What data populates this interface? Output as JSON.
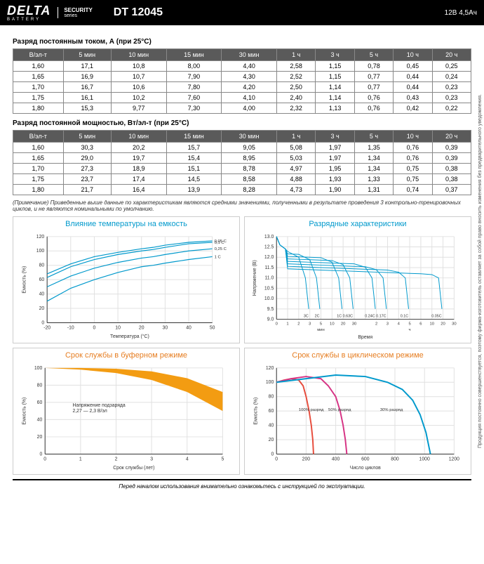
{
  "header": {
    "brand": "DELTA",
    "brand_sub": "BATTERY",
    "security_top": "SECURITY",
    "security_bot": "series",
    "model": "DT 12045",
    "spec": "12В  4,5Ач"
  },
  "vertical_note": "Продукция постоянно совершенствуется, поэтому фирма-изготовитель оставляет за собой право вносить изменения без предварительного уведомления.",
  "table1": {
    "title": "Разряд постоянным током, А (при 25°С)",
    "headers": [
      "В/эл-т",
      "5 мин",
      "10 мин",
      "15 мин",
      "30 мин",
      "1 ч",
      "3 ч",
      "5 ч",
      "10 ч",
      "20 ч"
    ],
    "rows": [
      [
        "1,60",
        "17,1",
        "10,8",
        "8,00",
        "4,40",
        "2,58",
        "1,15",
        "0,78",
        "0,45",
        "0,25"
      ],
      [
        "1,65",
        "16,9",
        "10,7",
        "7,90",
        "4,30",
        "2,52",
        "1,15",
        "0,77",
        "0,44",
        "0,24"
      ],
      [
        "1,70",
        "16,7",
        "10,6",
        "7,80",
        "4,20",
        "2,50",
        "1,14",
        "0,77",
        "0,44",
        "0,23"
      ],
      [
        "1,75",
        "16,1",
        "10,2",
        "7,60",
        "4,10",
        "2,40",
        "1,14",
        "0,76",
        "0,43",
        "0,23"
      ],
      [
        "1,80",
        "15,3",
        "9,77",
        "7,30",
        "4,00",
        "2,32",
        "1,13",
        "0,76",
        "0,42",
        "0,22"
      ]
    ]
  },
  "table2": {
    "title": "Разряд постоянной мощностью, Вт/эл-т (при 25°С)",
    "headers": [
      "В/эл-т",
      "5 мин",
      "10 мин",
      "15 мин",
      "30 мин",
      "1 ч",
      "3 ч",
      "5 ч",
      "10 ч",
      "20 ч"
    ],
    "rows": [
      [
        "1,60",
        "30,3",
        "20,2",
        "15,7",
        "9,05",
        "5,08",
        "1,97",
        "1,35",
        "0,76",
        "0,39"
      ],
      [
        "1,65",
        "29,0",
        "19,7",
        "15,4",
        "8,95",
        "5,03",
        "1,97",
        "1,34",
        "0,76",
        "0,39"
      ],
      [
        "1,70",
        "27,3",
        "18,9",
        "15,1",
        "8,78",
        "4,97",
        "1,95",
        "1,34",
        "0,75",
        "0,38"
      ],
      [
        "1,75",
        "23,7",
        "17,4",
        "14,5",
        "8,58",
        "4,88",
        "1,93",
        "1,33",
        "0,75",
        "0,38"
      ],
      [
        "1,80",
        "21,7",
        "16,4",
        "13,9",
        "8,28",
        "4,73",
        "1,90",
        "1,31",
        "0,74",
        "0,37"
      ]
    ]
  },
  "footnote": "(Примечание) Приведенные выше данные по характеристикам являются средними значениями, полученными в результате проведения 3 контрольно-тренировочных циклов, и не являются номинальными по умолчанию.",
  "chart1": {
    "title": "Влияние температуры на емкость",
    "color": "#0099cc",
    "xlabel": "Температура (°С)",
    "ylabel": "Емкость (%)",
    "xlim": [
      -20,
      50
    ],
    "xtick_step": 10,
    "ylim": [
      0,
      120
    ],
    "ytick_step": 20,
    "grid_color": "#e0e0e0",
    "line_color": "#0099cc",
    "series": [
      {
        "label": "0,05 С",
        "points": [
          [
            -20,
            68
          ],
          [
            -10,
            82
          ],
          [
            0,
            92
          ],
          [
            10,
            98
          ],
          [
            20,
            103
          ],
          [
            25,
            105
          ],
          [
            30,
            108
          ],
          [
            40,
            112
          ],
          [
            50,
            114
          ]
        ]
      },
      {
        "label": "0,1 С",
        "points": [
          [
            -20,
            63
          ],
          [
            -10,
            78
          ],
          [
            0,
            88
          ],
          [
            10,
            95
          ],
          [
            20,
            100
          ],
          [
            25,
            102
          ],
          [
            30,
            105
          ],
          [
            40,
            110
          ],
          [
            50,
            112
          ]
        ]
      },
      {
        "label": "0,25 С",
        "points": [
          [
            -20,
            50
          ],
          [
            -10,
            65
          ],
          [
            0,
            76
          ],
          [
            10,
            84
          ],
          [
            20,
            90
          ],
          [
            25,
            92
          ],
          [
            30,
            95
          ],
          [
            40,
            100
          ],
          [
            50,
            103
          ]
        ]
      },
      {
        "label": "1 С",
        "points": [
          [
            -20,
            30
          ],
          [
            -10,
            48
          ],
          [
            0,
            60
          ],
          [
            10,
            70
          ],
          [
            20,
            78
          ],
          [
            25,
            80
          ],
          [
            30,
            83
          ],
          [
            40,
            88
          ],
          [
            50,
            92
          ]
        ]
      }
    ]
  },
  "chart2": {
    "title": "Разрядные характеристики",
    "color": "#0099cc",
    "xlabel": "Время",
    "x_sublabels": [
      "мин",
      "ч"
    ],
    "ylabel": "Напряжение (В)",
    "xticks_min": [
      0,
      1,
      2,
      3,
      5,
      10,
      20,
      30
    ],
    "xticks_hr": [
      2,
      3,
      4,
      5,
      6,
      10,
      20,
      30
    ],
    "yticks": [
      9.0,
      9.5,
      10.0,
      10.5,
      11.0,
      11.5,
      12.0,
      12.5,
      13.0
    ],
    "grid_color": "#e0e0e0",
    "line_color": "#0099cc",
    "curve_labels": [
      "3С",
      "2С",
      "1С",
      "0.63С",
      "0.24С",
      "0.17С",
      "0.1С",
      "0.05С"
    ]
  },
  "chart3": {
    "title": "Срок службы в буферном режиме",
    "color": "#e67e22",
    "xlabel": "Срок службы (лет)",
    "ylabel": "Емкость (%)",
    "xlim": [
      0,
      5
    ],
    "xtick_step": 1,
    "ylim": [
      0,
      100
    ],
    "ytick_step": 20,
    "grid_color": "#e0e0e0",
    "fill_color": "#f39c12",
    "note": "Напряжение подзаряда\n2,27 — 2,3 В/эл",
    "band_top": [
      [
        0,
        100
      ],
      [
        1,
        100
      ],
      [
        2,
        99
      ],
      [
        3,
        96
      ],
      [
        4,
        88
      ],
      [
        5,
        72
      ]
    ],
    "band_bot": [
      [
        0,
        100
      ],
      [
        1,
        98
      ],
      [
        2,
        94
      ],
      [
        3,
        86
      ],
      [
        4,
        72
      ],
      [
        5,
        50
      ]
    ]
  },
  "chart4": {
    "title": "Срок службы в циклическом режиме",
    "color": "#e67e22",
    "xlabel": "Число циклов",
    "ylabel": "Емкость (%)",
    "xlim": [
      0,
      1200
    ],
    "xtick_step": 200,
    "ylim": [
      0,
      120
    ],
    "ytick_step": 20,
    "grid_color": "#e0e0e0",
    "series": [
      {
        "label": "100% разряд",
        "color": "#e74c3c",
        "points": [
          [
            0,
            100
          ],
          [
            50,
            103
          ],
          [
            100,
            105
          ],
          [
            150,
            103
          ],
          [
            180,
            95
          ],
          [
            200,
            80
          ],
          [
            220,
            60
          ],
          [
            235,
            40
          ],
          [
            245,
            20
          ],
          [
            250,
            0
          ]
        ]
      },
      {
        "label": "50% разряд",
        "color": "#d63384",
        "points": [
          [
            0,
            100
          ],
          [
            100,
            105
          ],
          [
            200,
            108
          ],
          [
            300,
            105
          ],
          [
            350,
            95
          ],
          [
            400,
            80
          ],
          [
            430,
            60
          ],
          [
            450,
            40
          ],
          [
            465,
            20
          ],
          [
            475,
            0
          ]
        ]
      },
      {
        "label": "30% разряд",
        "color": "#0099cc",
        "points": [
          [
            0,
            100
          ],
          [
            200,
            105
          ],
          [
            400,
            110
          ],
          [
            600,
            108
          ],
          [
            750,
            100
          ],
          [
            850,
            90
          ],
          [
            920,
            75
          ],
          [
            970,
            55
          ],
          [
            1010,
            30
          ],
          [
            1040,
            0
          ]
        ]
      }
    ]
  },
  "bottom_note": "Перед началом использования внимательно ознакомьтесь с инструкцией по эксплуатации."
}
